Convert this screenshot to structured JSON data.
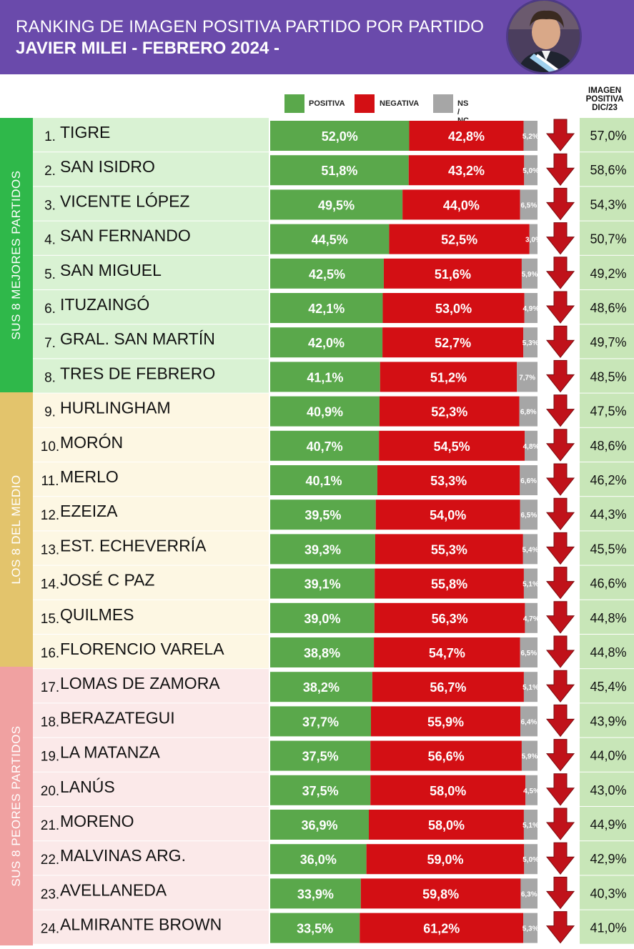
{
  "header": {
    "title_line1": "RANKING DE IMAGEN POSITIVA PARTIDO POR PARTIDO",
    "title_line2": "JAVIER MILEI - FEBRERO 2024 -",
    "bg_color": "#6a4aab"
  },
  "legend": {
    "positiva": "POSITIVA",
    "negativa": "NEGATIVA",
    "nsnc": "NS / NC"
  },
  "previous_header": {
    "line1": "IMAGEN",
    "line2": "POSITIVA",
    "line3": "DIC/23"
  },
  "groups": [
    {
      "label": "SUS 8 MEJORES PARTIDOS",
      "color": "#2fb84a",
      "row_bg": "#d9f2d3"
    },
    {
      "label": "LOS 8 DEL MEDIO",
      "color": "#e3c46c",
      "row_bg": "#fdf7e3"
    },
    {
      "label": "SUS 8 PEORES PARTIDOS",
      "color": "#f0a1a1",
      "row_bg": "#fbe9e9"
    }
  ],
  "colors": {
    "positiva": "#5aa84b",
    "negativa": "#d30f14",
    "nsnc": "#a6a6a6",
    "arrow": "#c0121a",
    "prev_bg": "#c8e6b8"
  },
  "chart_data": {
    "type": "bar",
    "stacked": true,
    "orientation": "horizontal",
    "title": "RANKING DE IMAGEN POSITIVA PARTIDO POR PARTIDO",
    "subtitle": "JAVIER MILEI - FEBRERO 2024 -",
    "categories": [
      "TIGRE",
      "SAN ISIDRO",
      "VICENTE LÓPEZ",
      "SAN FERNANDO",
      "SAN MIGUEL",
      "ITUZAINGÓ",
      "GRAL. SAN MARTÍN",
      "TRES DE FEBRERO",
      "HURLINGHAM",
      "MORÓN",
      "MERLO",
      "EZEIZA",
      "EST. ECHEVERRÍA",
      "JOSÉ C PAZ",
      "QUILMES",
      "FLORENCIO VARELA",
      "LOMAS DE ZAMORA",
      "BERAZATEGUI",
      "LA MATANZA",
      "LANÚS",
      "MORENO",
      "MALVINAS ARG.",
      "AVELLANEDA",
      "ALMIRANTE BROWN"
    ],
    "ranks": [
      "1.",
      "2.",
      "3.",
      "4.",
      "5.",
      "6.",
      "7.",
      "8.",
      "9.",
      "10.",
      "11.",
      "12.",
      "13.",
      "14.",
      "15.",
      "16.",
      "17.",
      "18.",
      "19.",
      "20.",
      "21.",
      "22.",
      "23.",
      "24."
    ],
    "series": [
      {
        "name": "POSITIVA",
        "values": [
          52.0,
          51.8,
          49.5,
          44.5,
          42.5,
          42.1,
          42.0,
          41.1,
          40.9,
          40.7,
          40.1,
          39.5,
          39.3,
          39.1,
          39.0,
          38.8,
          38.2,
          37.7,
          37.5,
          37.5,
          36.9,
          36.0,
          33.9,
          33.5
        ]
      },
      {
        "name": "NEGATIVA",
        "values": [
          42.8,
          43.2,
          44.0,
          52.5,
          51.6,
          53.0,
          52.7,
          51.2,
          52.3,
          54.5,
          53.3,
          54.0,
          55.3,
          55.8,
          56.3,
          54.7,
          56.7,
          55.9,
          56.6,
          58.0,
          58.0,
          59.0,
          59.8,
          61.2
        ]
      },
      {
        "name": "NS / NC",
        "values": [
          5.2,
          5.0,
          6.5,
          3.0,
          5.9,
          4.9,
          5.3,
          7.7,
          6.8,
          4.8,
          6.6,
          6.5,
          5.4,
          5.1,
          4.7,
          6.5,
          5.1,
          6.4,
          5.9,
          4.5,
          5.1,
          5.0,
          6.3,
          5.3
        ]
      }
    ],
    "labels": {
      "positiva": [
        "52,0%",
        "51,8%",
        "49,5%",
        "44,5%",
        "42,5%",
        "42,1%",
        "42,0%",
        "41,1%",
        "40,9%",
        "40,7%",
        "40,1%",
        "39,5%",
        "39,3%",
        "39,1%",
        "39,0%",
        "38,8%",
        "38,2%",
        "37,7%",
        "37,5%",
        "37,5%",
        "36,9%",
        "36,0%",
        "33,9%",
        "33,5%"
      ],
      "negativa": [
        "42,8%",
        "43,2%",
        "44,0%",
        "52,5%",
        "51,6%",
        "53,0%",
        "52,7%",
        "51,2%",
        "52,3%",
        "54,5%",
        "53,3%",
        "54,0%",
        "55,3%",
        "55,8%",
        "56,3%",
        "54,7%",
        "56,7%",
        "55,9%",
        "56,6%",
        "58,0%",
        "58,0%",
        "59,0%",
        "59,8%",
        "61,2%"
      ],
      "nsnc": [
        "5,2%",
        "5,0%",
        "6,5%",
        "3,0%",
        "5,9%",
        "4,9%",
        "5,3%",
        "7,7%",
        "6,8%",
        "4,8%",
        "6,6%",
        "6,5%",
        "5,4%",
        "5,1%",
        "4,7%",
        "6,5%",
        "5,1%",
        "6,4%",
        "5,9%",
        "4,5%",
        "5,1%",
        "5,0%",
        "6,3%",
        "5,3%"
      ],
      "previous": [
        "57,0%",
        "58,6%",
        "54,3%",
        "50,7%",
        "49,2%",
        "48,6%",
        "49,7%",
        "48,5%",
        "47,5%",
        "48,6%",
        "46,2%",
        "44,3%",
        "45,5%",
        "46,6%",
        "44,8%",
        "44,8%",
        "45,4%",
        "43,9%",
        "44,0%",
        "43,0%",
        "44,9%",
        "42,9%",
        "40,3%",
        "41,0%"
      ]
    },
    "previous_values": [
      57.0,
      58.6,
      54.3,
      50.7,
      49.2,
      48.6,
      49.7,
      48.5,
      47.5,
      48.6,
      46.2,
      44.3,
      45.5,
      46.6,
      44.8,
      44.8,
      45.4,
      43.9,
      44.0,
      43.0,
      44.9,
      42.9,
      40.3,
      41.0
    ],
    "trend": "down",
    "xlim": [
      0,
      100
    ],
    "legend_position": "top"
  }
}
